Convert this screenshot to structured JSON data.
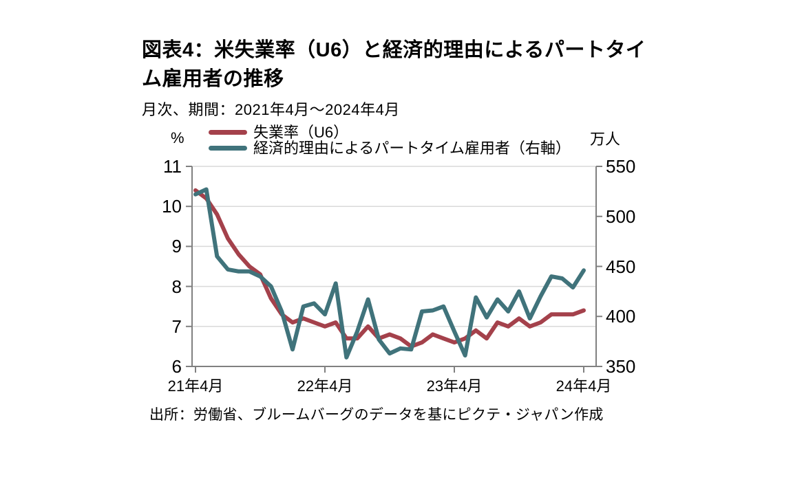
{
  "header": {
    "title": "図表4：米失業率（U6）と経済的理由によるパートタイム雇用者の推移",
    "subtitle": "月次、期間：2021年4月～2024年4月"
  },
  "legend": [
    {
      "label": "失業率（U6）",
      "color": "#A4414B"
    },
    {
      "label": "経済的理由によるパートタイム雇用者（右軸）",
      "color": "#40737B"
    }
  ],
  "axes": {
    "left_unit": "%",
    "right_unit": "万人",
    "left_ticks": [
      11,
      10,
      9,
      8,
      7,
      6
    ],
    "right_ticks": [
      550,
      500,
      450,
      400,
      350
    ],
    "x_tick_labels": [
      "21年4月",
      "22年4月",
      "23年4月",
      "24年4月"
    ],
    "x_tick_months": [
      0,
      12,
      24,
      36
    ],
    "axis_color": "#808080",
    "grid_color": "#D9D9D9"
  },
  "source": "出所：労働省、ブルームバーグのデータを基にピクテ・ジャパン作成",
  "chart_data": {
    "type": "line",
    "frequency": "monthly",
    "x_start": "2021-04",
    "x_end": "2024-04",
    "left_ylim": [
      6,
      11
    ],
    "right_ylim": [
      350,
      550
    ],
    "grid": "horizontal-only",
    "legend_position": "top-left",
    "series": [
      {
        "name": "失業率（U6）",
        "axis": "left",
        "unit": "%",
        "color": "#A4414B",
        "values": [
          10.4,
          10.2,
          9.8,
          9.2,
          8.8,
          8.5,
          8.3,
          7.7,
          7.3,
          7.1,
          7.2,
          7.1,
          7.0,
          7.1,
          6.7,
          6.7,
          7.0,
          6.7,
          6.8,
          6.7,
          6.5,
          6.6,
          6.8,
          6.7,
          6.6,
          6.7,
          6.9,
          6.7,
          7.1,
          7.0,
          7.2,
          7.0,
          7.1,
          7.3,
          7.3,
          7.3,
          7.4
        ]
      },
      {
        "name": "経済的理由によるパートタイム雇用者（右軸）",
        "axis": "right",
        "unit": "万人",
        "color": "#40737B",
        "values": [
          522,
          527,
          460,
          447,
          445,
          445,
          440,
          430,
          405,
          367,
          410,
          413,
          402,
          433,
          359,
          385,
          417,
          377,
          363,
          368,
          367,
          405,
          406,
          410,
          385,
          361,
          419,
          399,
          417,
          405,
          425,
          398,
          420,
          440,
          438,
          429,
          446
        ]
      }
    ]
  }
}
